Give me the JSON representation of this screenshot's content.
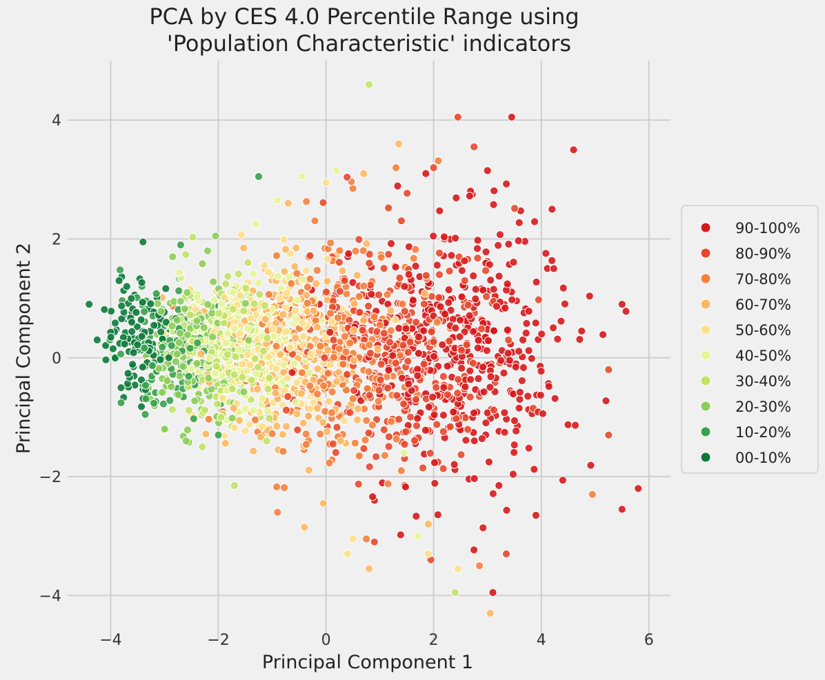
{
  "chart_data": {
    "type": "scatter",
    "title_line1": "PCA by CES 4.0 Percentile Range using",
    "title_line2": "'Population Characteristic' indicators",
    "xlabel": "Principal Component 1",
    "ylabel": "Principal Component 2",
    "xlim": [
      -4.8,
      6.4
    ],
    "ylim": [
      -4.75,
      5.0
    ],
    "xticks": [
      -4,
      -2,
      0,
      2,
      4,
      6
    ],
    "yticks": [
      -4,
      -2,
      0,
      2,
      4
    ],
    "xtick_labels": [
      "−4",
      "−2",
      "0",
      "2",
      "4",
      "6"
    ],
    "ytick_labels": [
      "−4",
      "−2",
      "0",
      "2",
      "4"
    ],
    "grid": true,
    "legend_position": "center-right",
    "series": [
      {
        "name": "90-100%",
        "color": "#d7191c",
        "center": [
          2.4,
          0.2
        ],
        "spread": [
          1.0,
          1.05
        ],
        "count": 420,
        "extremes": [
          [
            4.6,
            3.5
          ],
          [
            3.45,
            4.05
          ],
          [
            3.1,
            -3.95
          ],
          [
            5.8,
            -2.2
          ],
          [
            5.5,
            0.9
          ],
          [
            5.5,
            -2.55
          ],
          [
            4.2,
            2.5
          ],
          [
            4.75,
            0.45
          ],
          [
            3.9,
            -2.65
          ],
          [
            0.9,
            -2.4
          ],
          [
            3.0,
            3.15
          ]
        ]
      },
      {
        "name": "80-90%",
        "color": "#e8492c",
        "center": [
          1.2,
          0.05
        ],
        "spread": [
          0.95,
          1.0
        ],
        "count": 300,
        "extremes": [
          [
            2.45,
            4.05
          ],
          [
            2.75,
            3.55
          ],
          [
            5.25,
            -0.2
          ],
          [
            5.25,
            -1.3
          ],
          [
            3.35,
            -3.3
          ],
          [
            0.9,
            -3.1
          ],
          [
            1.95,
            -3.4
          ],
          [
            2.0,
            3.2
          ],
          [
            3.85,
            -0.85
          ]
        ]
      },
      {
        "name": "70-80%",
        "color": "#f4813f",
        "center": [
          0.1,
          0.1
        ],
        "spread": [
          0.85,
          0.9
        ],
        "count": 260,
        "extremes": [
          [
            4.95,
            -2.3
          ],
          [
            -0.9,
            -2.6
          ],
          [
            0.5,
            2.85
          ],
          [
            1.3,
            3.2
          ],
          [
            0.75,
            -3.05
          ],
          [
            1.4,
            -1.9
          ],
          [
            2.85,
            -3.5
          ]
        ]
      },
      {
        "name": "60-70%",
        "color": "#fdb863",
        "center": [
          -0.55,
          0.1
        ],
        "spread": [
          0.8,
          0.8
        ],
        "count": 230,
        "extremes": [
          [
            1.35,
            3.6
          ],
          [
            0.7,
            3.1
          ],
          [
            0.8,
            -3.55
          ],
          [
            -0.05,
            -2.45
          ],
          [
            1.9,
            -2.8
          ],
          [
            -0.4,
            -2.85
          ],
          [
            3.05,
            -4.3
          ],
          [
            -0.7,
            2.6
          ]
        ]
      },
      {
        "name": "50-60%",
        "color": "#fee08b",
        "center": [
          -1.1,
          0.15
        ],
        "spread": [
          0.7,
          0.7
        ],
        "count": 220,
        "extremes": [
          [
            0.0,
            2.95
          ],
          [
            0.4,
            -3.3
          ],
          [
            0.5,
            -3.05
          ],
          [
            1.9,
            -3.3
          ],
          [
            2.45,
            -3.55
          ]
        ]
      },
      {
        "name": "40-50%",
        "color": "#e6f598",
        "center": [
          -1.5,
          0.2
        ],
        "spread": [
          0.6,
          0.6
        ],
        "count": 200,
        "extremes": [
          [
            0.2,
            3.15
          ],
          [
            -0.45,
            3.05
          ],
          [
            -1.3,
            2.25
          ],
          [
            -0.9,
            2.65
          ],
          [
            1.45,
            -1.6
          ],
          [
            1.7,
            -3.0
          ]
        ]
      },
      {
        "name": "30-40%",
        "color": "#c2e267",
        "center": [
          -1.9,
          0.05
        ],
        "spread": [
          0.55,
          0.6
        ],
        "count": 180,
        "extremes": [
          [
            0.8,
            4.6
          ],
          [
            -1.45,
            1.6
          ],
          [
            -1.7,
            -2.15
          ],
          [
            -2.3,
            -1.5
          ],
          [
            2.4,
            -3.95
          ],
          [
            -1.1,
            -1.4
          ]
        ]
      },
      {
        "name": "20-30%",
        "color": "#8ccd5a",
        "center": [
          -2.45,
          0.1
        ],
        "spread": [
          0.45,
          0.55
        ],
        "count": 160,
        "extremes": [
          [
            -2.05,
            2.05
          ],
          [
            -2.2,
            1.8
          ],
          [
            -3.0,
            -1.2
          ],
          [
            -2.6,
            -1.4
          ],
          [
            -2.85,
            1.7
          ]
        ]
      },
      {
        "name": "10-20%",
        "color": "#3aa14c",
        "center": [
          -2.85,
          0.15
        ],
        "spread": [
          0.4,
          0.5
        ],
        "count": 110,
        "extremes": [
          [
            -1.25,
            3.05
          ],
          [
            -2.7,
            1.9
          ],
          [
            -2.0,
            -1.3
          ],
          [
            -3.4,
            -0.45
          ]
        ]
      },
      {
        "name": "00-10%",
        "color": "#0d7a3b",
        "center": [
          -3.55,
          0.35
        ],
        "spread": [
          0.35,
          0.45
        ],
        "count": 110,
        "extremes": [
          [
            -4.4,
            0.9
          ],
          [
            -3.4,
            1.95
          ],
          [
            -4.25,
            0.3
          ],
          [
            -3.7,
            1.2
          ]
        ]
      }
    ]
  }
}
